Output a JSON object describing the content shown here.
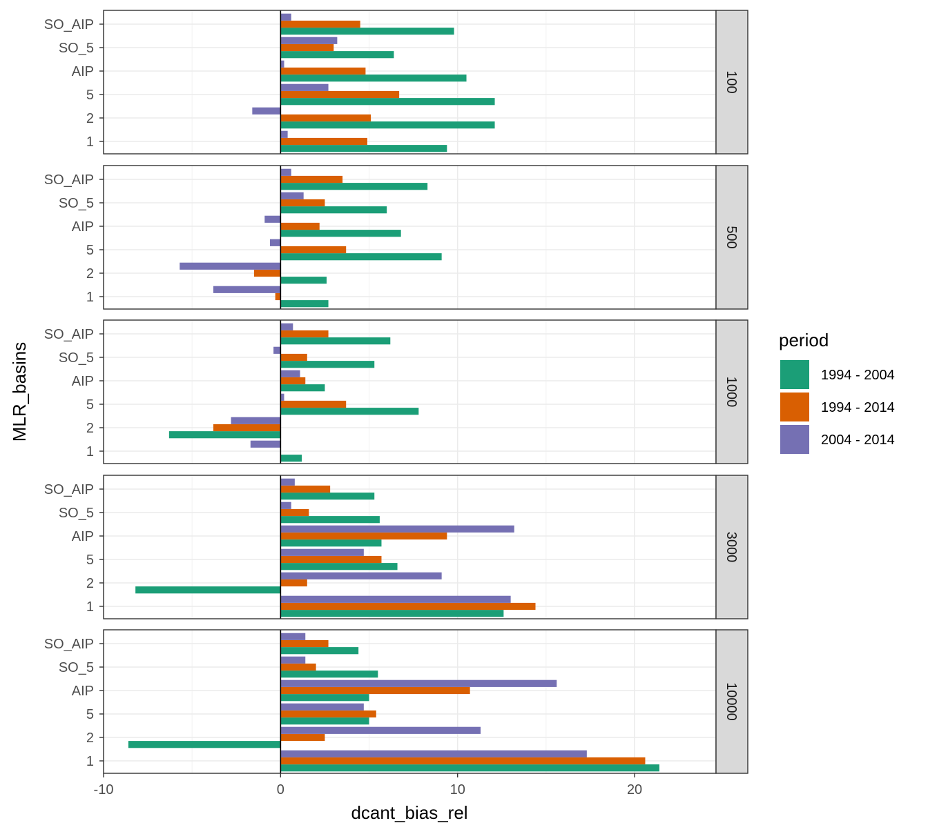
{
  "chart_data": {
    "type": "bar",
    "orientation": "horizontal",
    "xlabel": "dcant_bias_rel",
    "ylabel": "MLR_basins",
    "xlim": [
      -10,
      24.6
    ],
    "x_ticks": [
      -10,
      0,
      10,
      20
    ],
    "categories": [
      "SO_AIP",
      "SO_5",
      "AIP",
      "5",
      "2",
      "1"
    ],
    "grid": true,
    "zero_line": true,
    "legend": {
      "title": "period",
      "position": "right",
      "entries": [
        "1994 - 2004",
        "1994 - 2014",
        "2004 - 2014"
      ]
    },
    "colors": {
      "1994 - 2004": "#1b9e77",
      "1994 - 2014": "#d95f02",
      "2004 - 2014": "#7570b3"
    },
    "facets": [
      {
        "label": "100",
        "series": [
          {
            "name": "1994 - 2004",
            "values": [
              9.8,
              6.4,
              10.5,
              12.1,
              12.1,
              9.4
            ]
          },
          {
            "name": "1994 - 2014",
            "values": [
              4.5,
              3.0,
              4.8,
              6.7,
              5.1,
              4.9
            ]
          },
          {
            "name": "2004 - 2014",
            "values": [
              0.6,
              3.2,
              0.2,
              2.7,
              -1.6,
              0.4
            ]
          }
        ]
      },
      {
        "label": "500",
        "series": [
          {
            "name": "1994 - 2004",
            "values": [
              8.3,
              6.0,
              6.8,
              9.1,
              2.6,
              2.7
            ]
          },
          {
            "name": "1994 - 2014",
            "values": [
              3.5,
              2.5,
              2.2,
              3.7,
              -1.5,
              -0.3
            ]
          },
          {
            "name": "2004 - 2014",
            "values": [
              0.6,
              1.3,
              -0.9,
              -0.6,
              -5.7,
              -3.8
            ]
          }
        ]
      },
      {
        "label": "1000",
        "series": [
          {
            "name": "1994 - 2004",
            "values": [
              6.2,
              5.3,
              2.5,
              7.8,
              -6.3,
              1.2
            ]
          },
          {
            "name": "1994 - 2014",
            "values": [
              2.7,
              1.5,
              1.4,
              3.7,
              -3.8,
              0.0
            ]
          },
          {
            "name": "2004 - 2014",
            "values": [
              0.7,
              -0.4,
              1.1,
              0.2,
              -2.8,
              -1.7
            ]
          }
        ]
      },
      {
        "label": "3000",
        "series": [
          {
            "name": "1994 - 2004",
            "values": [
              5.3,
              5.6,
              5.7,
              6.6,
              -8.2,
              12.6
            ]
          },
          {
            "name": "1994 - 2014",
            "values": [
              2.8,
              1.6,
              9.4,
              5.7,
              1.5,
              14.4
            ]
          },
          {
            "name": "2004 - 2014",
            "values": [
              0.8,
              0.6,
              13.2,
              4.7,
              9.1,
              13.0
            ]
          }
        ]
      },
      {
        "label": "10000",
        "series": [
          {
            "name": "1994 - 2004",
            "values": [
              4.4,
              5.5,
              5.0,
              5.0,
              -8.6,
              21.4
            ]
          },
          {
            "name": "1994 - 2014",
            "values": [
              2.7,
              2.0,
              10.7,
              5.4,
              2.5,
              20.6
            ]
          },
          {
            "name": "2004 - 2014",
            "values": [
              1.4,
              1.4,
              15.6,
              4.7,
              11.3,
              17.3
            ]
          }
        ]
      }
    ]
  }
}
